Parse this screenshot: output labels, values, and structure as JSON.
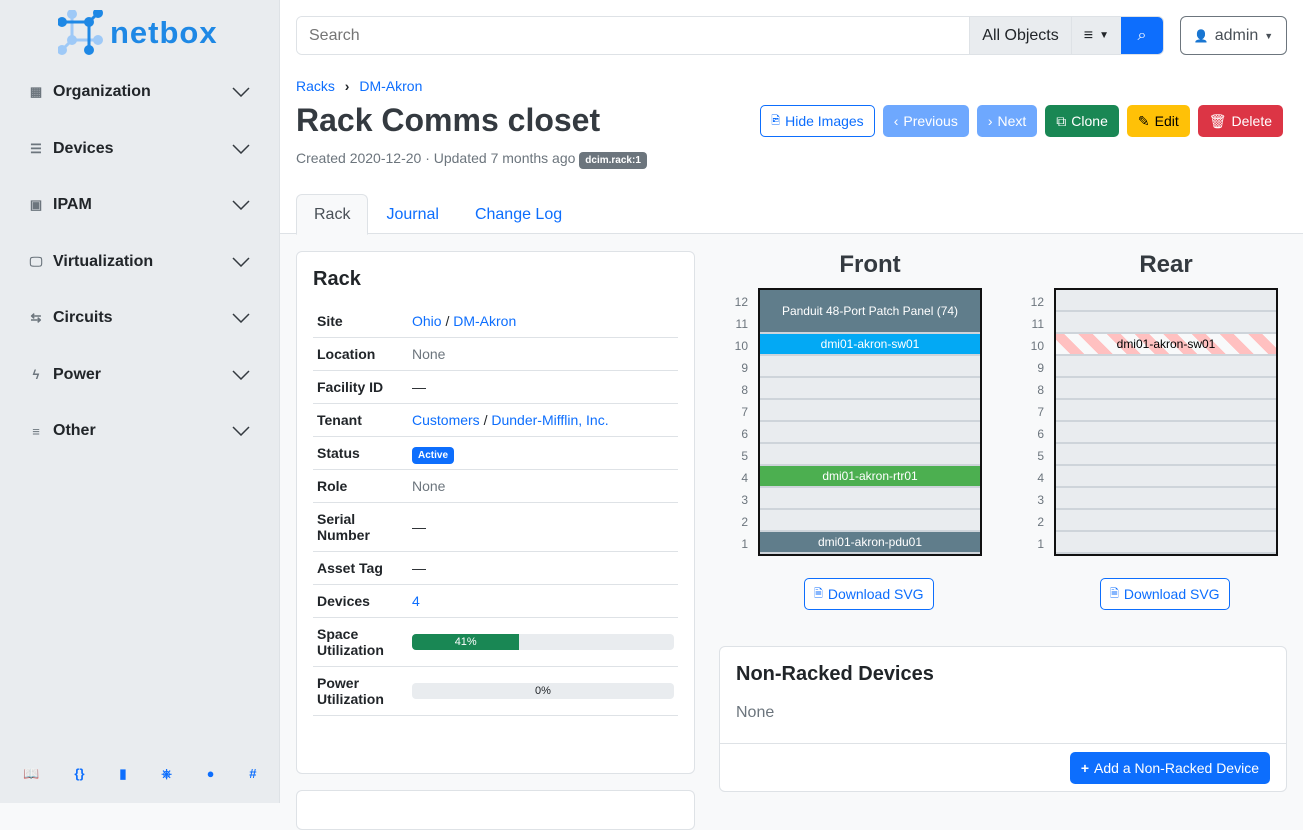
{
  "brand": {
    "name": "netbox",
    "color": "#1e88e5"
  },
  "sidebar": {
    "items": [
      {
        "label": "Organization",
        "icon": "domain-icon"
      },
      {
        "label": "Devices",
        "icon": "server-icon"
      },
      {
        "label": "IPAM",
        "icon": "counter-icon"
      },
      {
        "label": "Virtualization",
        "icon": "monitor-icon"
      },
      {
        "label": "Circuits",
        "icon": "transit-icon"
      },
      {
        "label": "Power",
        "icon": "flash-icon"
      },
      {
        "label": "Other",
        "icon": "notes-icon"
      }
    ],
    "footer": [
      "book-icon",
      "api-braces-icon",
      "bookmark-icon",
      "helm-icon",
      "github-icon",
      "slack-icon"
    ]
  },
  "search": {
    "placeholder": "Search",
    "scope": "All Objects"
  },
  "user": {
    "name": "admin"
  },
  "breadcrumb": [
    "Racks",
    "DM-Akron"
  ],
  "title": "Rack Comms closet",
  "meta": {
    "text": "Created 2020-12-20 · Updated 7 months ago",
    "badge": "dcim.rack:1"
  },
  "actions": {
    "hide_images": "Hide Images",
    "previous": "Previous",
    "next": "Next",
    "clone": "Clone",
    "edit": "Edit",
    "delete": "Delete"
  },
  "tabs": [
    "Rack",
    "Journal",
    "Change Log"
  ],
  "rack_card": {
    "title": "Rack",
    "site": {
      "label": "Site",
      "region": "Ohio",
      "site": "DM-Akron"
    },
    "location": {
      "label": "Location",
      "value": "None"
    },
    "facility": {
      "label": "Facility ID",
      "value": "—"
    },
    "tenant": {
      "label": "Tenant",
      "group": "Customers",
      "tenant": "Dunder-Mifflin, Inc."
    },
    "status": {
      "label": "Status",
      "value": "Active"
    },
    "role": {
      "label": "Role",
      "value": "None"
    },
    "serial": {
      "label": "Serial Number",
      "value": "—"
    },
    "asset": {
      "label": "Asset Tag",
      "value": "—"
    },
    "devices": {
      "label": "Devices",
      "value": "4"
    },
    "space": {
      "label": "Space Utilization",
      "value": "41%",
      "percent": 41
    },
    "power": {
      "label": "Power Utilization",
      "value": "0%",
      "percent": 0
    }
  },
  "elevations": {
    "front": {
      "title": "Front",
      "devices": [
        {
          "name": "Panduit 48-Port Patch Panel (74)",
          "top": 12,
          "height": 2,
          "color": "#607d8b"
        },
        {
          "name": "dmi01-akron-sw01",
          "top": 10,
          "height": 1,
          "color": "#03a9f4"
        },
        {
          "name": "dmi01-akron-rtr01",
          "top": 4,
          "height": 1,
          "color": "#4caf50"
        },
        {
          "name": "dmi01-akron-pdu01",
          "top": 1,
          "height": 1,
          "color": "#607d8b"
        }
      ]
    },
    "rear": {
      "title": "Rear",
      "devices": [
        {
          "name": "dmi01-akron-sw01",
          "top": 10,
          "height": 1,
          "color": "stripe"
        }
      ]
    },
    "units": 12,
    "download": "Download SVG"
  },
  "non_racked": {
    "title": "Non-Racked Devices",
    "value": "None",
    "add": "Add a Non-Racked Device"
  }
}
